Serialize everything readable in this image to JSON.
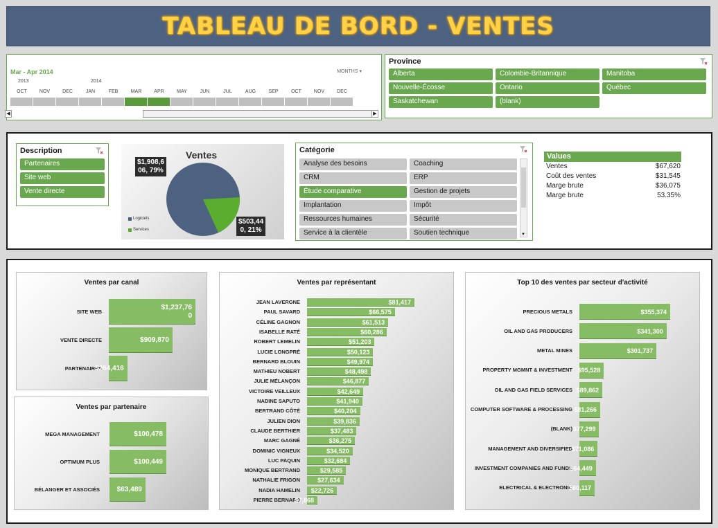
{
  "header": {
    "title": "TABLEAU DE BORD - VENTES"
  },
  "timeline": {
    "range_label": "Mar - Apr 2014",
    "level_label": "MONTHS",
    "years": [
      "2013",
      "2014"
    ],
    "months": [
      "OCT",
      "NOV",
      "DEC",
      "JAN",
      "FEB",
      "MAR",
      "APR",
      "MAY",
      "JUN",
      "JUL",
      "AUG",
      "SEP",
      "OCT",
      "NOV",
      "DEC"
    ],
    "selected": [
      "MAR",
      "APR"
    ]
  },
  "province": {
    "title": "Province",
    "items": [
      "Alberta",
      "Colombie-Britannique",
      "Manitoba",
      "Nouvelle-Écosse",
      "Ontario",
      "Québec",
      "Saskatchewan",
      "(blank)"
    ]
  },
  "description": {
    "title": "Description",
    "items": [
      "Partenaires",
      "Site web",
      "Vente directe"
    ]
  },
  "pie": {
    "title": "Ventes",
    "label_logiciels": "$1,908,6\n06, 79%",
    "label_services": "$503,44\n0, 21%",
    "legend": [
      "Logiciels",
      "Services"
    ],
    "colors": {
      "logiciels": "#4d6181",
      "services": "#5aad2e"
    }
  },
  "categorie": {
    "title": "Catégorie",
    "items": [
      "Analyse des besoins",
      "Coaching",
      "CRM",
      "ERP",
      "Étude comparative",
      "Gestion de projets",
      "Implantation",
      "Impôt",
      "Ressources humaines",
      "Sécurité",
      "Service à la clientèle",
      "Soutien technique"
    ],
    "selected": "Étude comparative"
  },
  "values": {
    "title": "Values",
    "rows": [
      {
        "label": "Ventes",
        "value": "$67,620"
      },
      {
        "label": "Coût des ventes",
        "value": "$31,545"
      },
      {
        "label": "Marge brute",
        "value": "$36,075"
      },
      {
        "label": "Marge brute",
        "value": "53.35%"
      }
    ]
  },
  "chart_data": [
    {
      "type": "bar",
      "title": "Ventes par canal",
      "categories": [
        "SITE WEB",
        "VENTE DIRECTE",
        "PARTENAIRES"
      ],
      "values": [
        1237760,
        909870,
        264416
      ],
      "labels": [
        "$1,237,76\n0",
        "$909,870",
        "$264,416"
      ]
    },
    {
      "type": "bar",
      "title": "Ventes par partenaire",
      "categories": [
        "MEGA MANAGEMENT",
        "OPTIMUM PLUS",
        "BÉLANGER ET ASSOCIÉS"
      ],
      "values": [
        100478,
        100449,
        63489
      ],
      "labels": [
        "$100,478",
        "$100,449",
        "$63,489"
      ]
    },
    {
      "type": "bar",
      "title": "Ventes par représentant",
      "categories": [
        "JEAN LAVERGNE",
        "PAUL SAVARD",
        "CÉLINE GAGNON",
        "ISABELLE RATÉ",
        "ROBERT LEMELIN",
        "LUCIE LONGPRÉ",
        "BERNARD BLOUIN",
        "MATHIEU NOBERT",
        "JULIE MÉLANÇON",
        "VICTOIRE VEILLEUX",
        "NADINE SAPUTO",
        "BERTRAND CÔTÉ",
        "JULIEN DION",
        "CLAUDE BERTHIER",
        "MARC GAGNÉ",
        "DOMINIC VIGNEUX",
        "LUC PAQUIN",
        "MONIQUE BERTRAND",
        "NATHALIE FRIGON",
        "NADIA HAMELIN",
        "PIERRE BERNARD"
      ],
      "values": [
        81417,
        66575,
        61513,
        60286,
        51203,
        50123,
        49974,
        48498,
        46877,
        42649,
        41940,
        40204,
        39836,
        37483,
        36275,
        34520,
        32684,
        29585,
        27634,
        22726,
        7868
      ],
      "labels": [
        "$81,417",
        "$66,575",
        "$61,513",
        "$60,286",
        "$51,203",
        "$50,123",
        "$49,974",
        "$48,498",
        "$46,877",
        "$42,649",
        "$41,940",
        "$40,204",
        "$39,836",
        "$37,483",
        "$36,275",
        "$34,520",
        "$32,684",
        "$29,585",
        "$27,634",
        "$22,726",
        "$7,868"
      ]
    },
    {
      "type": "bar",
      "title": "Top 10 des ventes par secteur d'activité",
      "categories": [
        "PRECIOUS METALS",
        "OIL AND GAS PRODUCERS",
        "METAL MINES",
        "PROPERTY MGMNT & INVESTMENT",
        "OIL AND GAS FIELD SERVICES",
        "COMPUTER SOFTWARE & PROCESSING",
        "(BLANK)",
        "MANAGEMENT AND DIVERSIFIED",
        "INVESTMENT COMPANIES AND FUNDS",
        "ELECTRICAL & ELECTRONIC"
      ],
      "values": [
        355374,
        341300,
        301737,
        95528,
        89862,
        81266,
        77299,
        71086,
        64449,
        60117
      ],
      "labels": [
        "$355,374",
        "$341,300",
        "$301,737",
        "$95,528",
        "$89,862",
        "$81,266",
        "$77,299",
        "$71,086",
        "$64,449",
        "$60,117"
      ]
    }
  ]
}
